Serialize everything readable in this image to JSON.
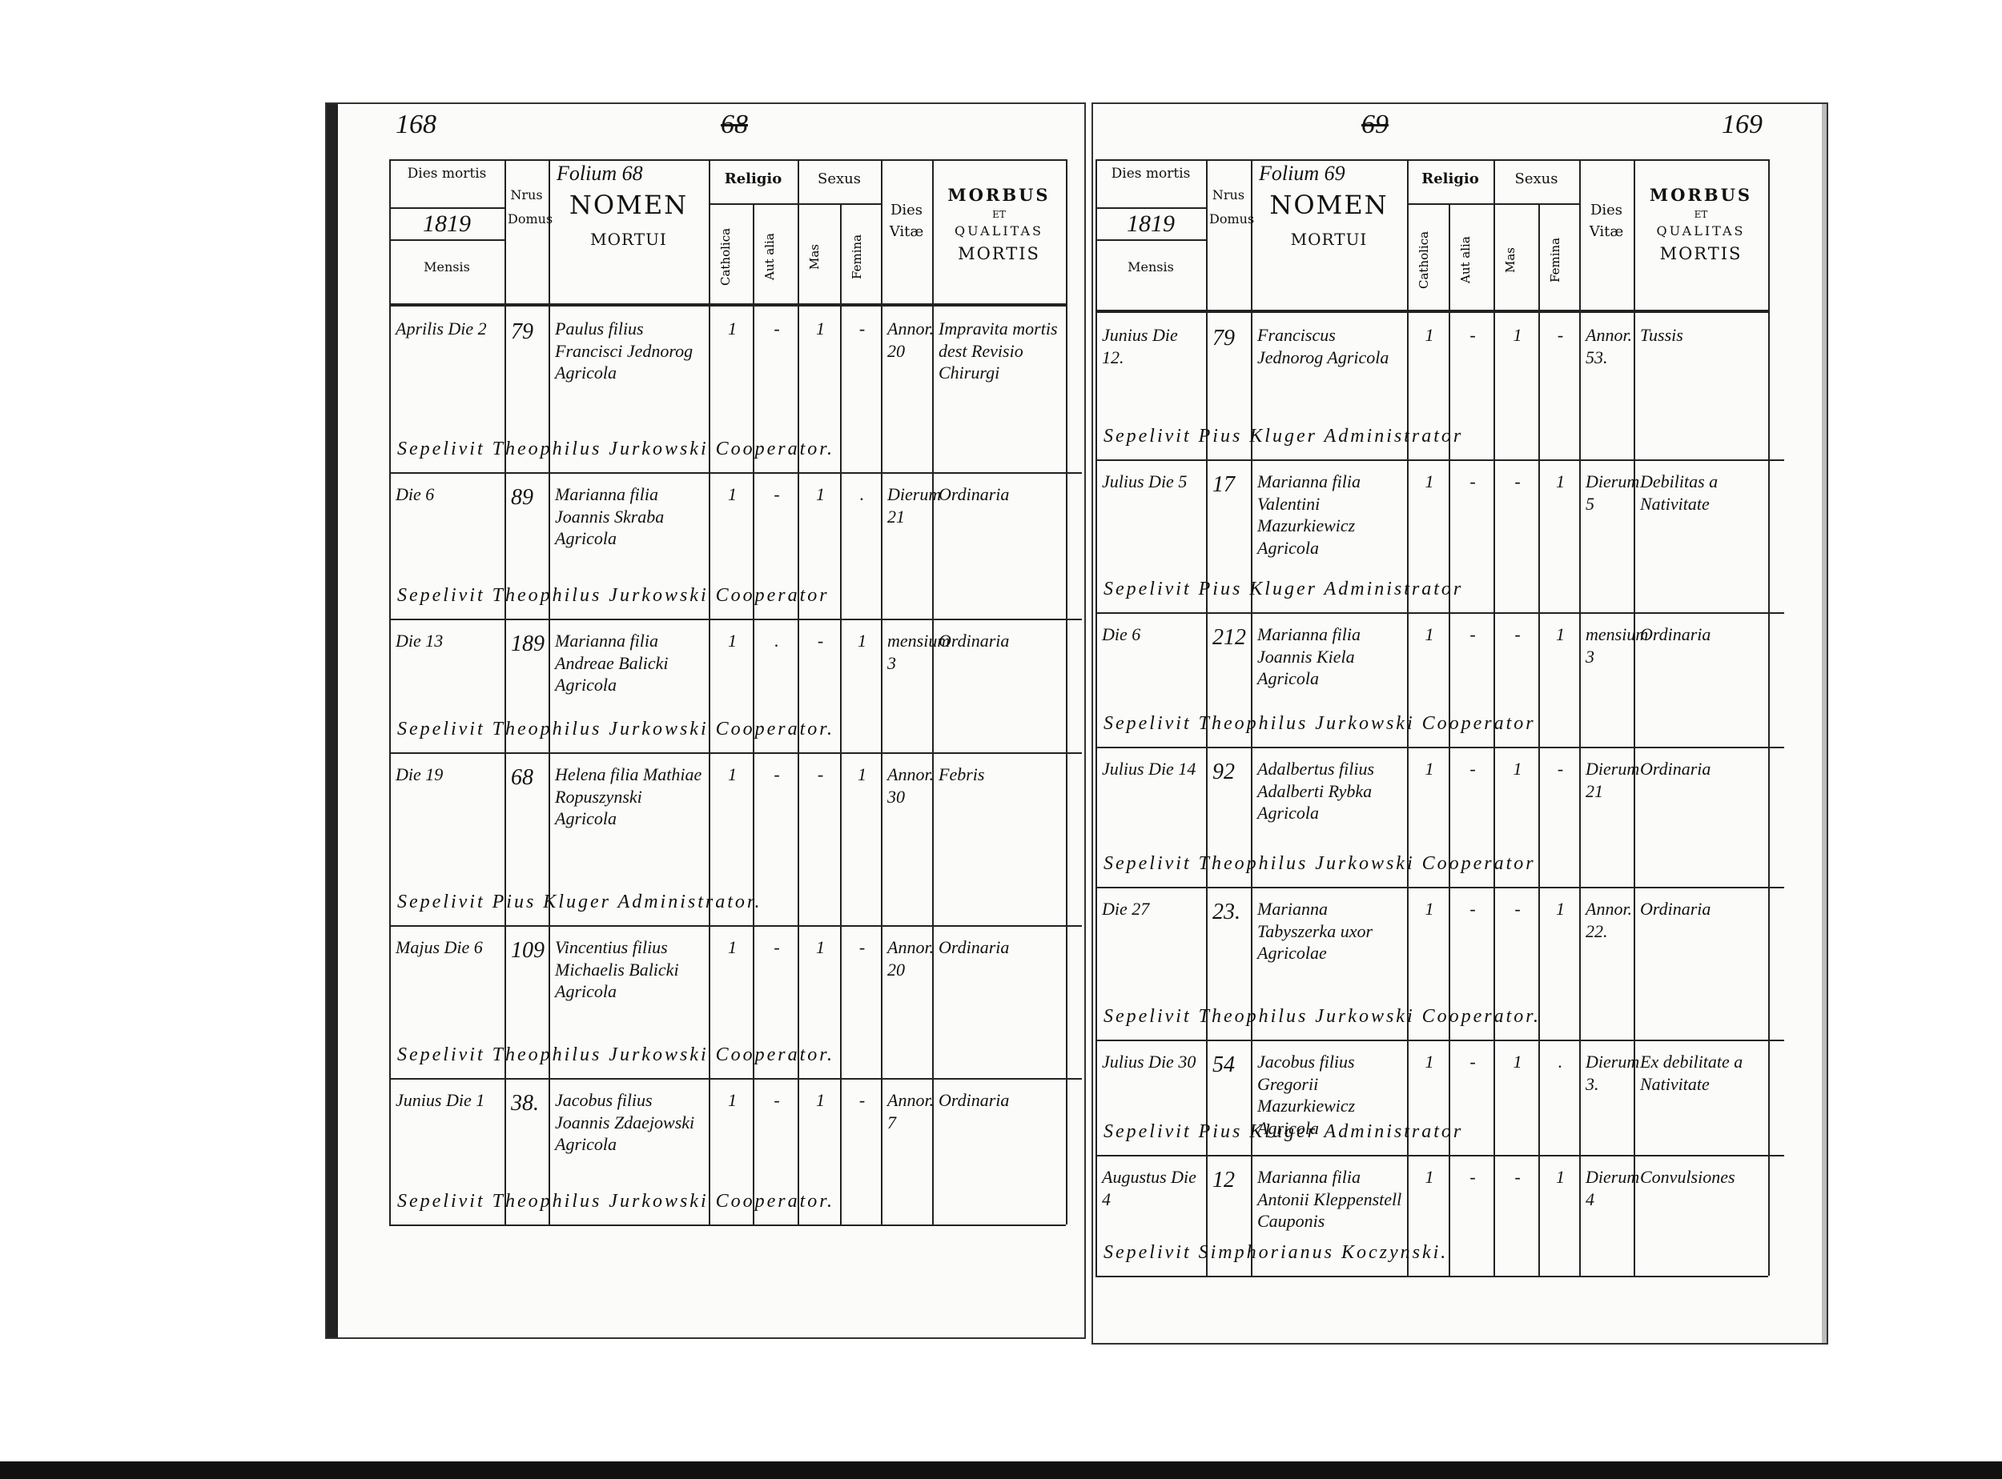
{
  "header": {
    "dies_mortis": "Dies mortis",
    "mensis": "Mensis",
    "nrus_domus": "Nrus Domus",
    "nomen": "NOMEN",
    "mortui": "MORTUI",
    "religio": "Religio",
    "catholica": "Catholica",
    "aut_alia": "Aut alia",
    "sexus": "Sexus",
    "mas": "Mas",
    "femina": "Femina",
    "dies_vitae": "Dies Vitæ",
    "morbus": "MORBUS",
    "et": "ET",
    "qualitas": "QUALITAS",
    "mortis": "MORTIS"
  },
  "pages": [
    {
      "page_number": "168",
      "old_number": "68",
      "year": "1819",
      "folium": "Folium 68",
      "entries": [
        {
          "date": "Aprilis Die 2",
          "house": "79",
          "name": "Paulus filius Francisci Jednorog Agricola",
          "catholica": "1",
          "aut_alia": "-",
          "mas": "1",
          "femina": "-",
          "age": "Annor. 20",
          "morbus": "Impravita mortis dest Revisio Chirurgi",
          "sepelivit": "Sepelivit Theophilus Jurkowski Cooperator."
        },
        {
          "date": "Die 6",
          "house": "89",
          "name": "Marianna filia Joannis Skraba Agricola",
          "catholica": "1",
          "aut_alia": "-",
          "mas": "1",
          "femina": ".",
          "age": "Dierum 21",
          "morbus": "Ordinaria",
          "sepelivit": "Sepelivit Theophilus Jurkowski Cooperator"
        },
        {
          "date": "Die 13",
          "house": "189",
          "name": "Marianna filia Andreae Balicki Agricola",
          "catholica": "1",
          "aut_alia": ".",
          "mas": "-",
          "femina": "1",
          "age": "mensium 3",
          "morbus": "Ordinaria",
          "sepelivit": "Sepelivit Theophilus Jurkowski Cooperator."
        },
        {
          "date": "Die 19",
          "house": "68",
          "name": "Helena filia Mathiae Ropuszynski Agricola",
          "catholica": "1",
          "aut_alia": "-",
          "mas": "-",
          "femina": "1",
          "age": "Annor. 30",
          "morbus": "Febris",
          "sepelivit": "Sepelivit Pius Kluger Administrator."
        },
        {
          "date": "Majus Die 6",
          "house": "109",
          "name": "Vincentius filius Michaelis Balicki Agricola",
          "catholica": "1",
          "aut_alia": "-",
          "mas": "1",
          "femina": "-",
          "age": "Annor. 20",
          "morbus": "Ordinaria",
          "sepelivit": "Sepelivit Theophilus Jurkowski Cooperator."
        },
        {
          "date": "Junius Die 1",
          "house": "38.",
          "name": "Jacobus filius Joannis Zdaejowski Agricola",
          "catholica": "1",
          "aut_alia": "-",
          "mas": "1",
          "femina": "-",
          "age": "Annor. 7",
          "morbus": "Ordinaria",
          "sepelivit": "Sepelivit Theophilus Jurkowski Cooperator."
        }
      ]
    },
    {
      "page_number": "169",
      "old_number": "69",
      "year": "1819",
      "folium": "Folium 69",
      "entries": [
        {
          "date": "Junius Die 12.",
          "house": "79",
          "name": "Franciscus Jednorog Agricola",
          "catholica": "1",
          "aut_alia": "-",
          "mas": "1",
          "femina": "-",
          "age": "Annor. 53.",
          "morbus": "Tussis",
          "sepelivit": "Sepelivit Pius Kluger Administrator"
        },
        {
          "date": "Julius Die 5",
          "house": "17",
          "name": "Marianna filia Valentini Mazurkiewicz Agricola",
          "catholica": "1",
          "aut_alia": "-",
          "mas": "-",
          "femina": "1",
          "age": "Dierum 5",
          "morbus": "Debilitas a Nativitate",
          "sepelivit": "Sepelivit Pius Kluger Administrator"
        },
        {
          "date": "Die 6",
          "house": "212",
          "name": "Marianna filia Joannis Kiela Agricola",
          "catholica": "1",
          "aut_alia": "-",
          "mas": "-",
          "femina": "1",
          "age": "mensium 3",
          "morbus": "Ordinaria",
          "sepelivit": "Sepelivit Theophilus Jurkowski Cooperator"
        },
        {
          "date": "Julius Die 14",
          "house": "92",
          "name": "Adalbertus filius Adalberti Rybka Agricola",
          "catholica": "1",
          "aut_alia": "-",
          "mas": "1",
          "femina": "-",
          "age": "Dierum 21",
          "morbus": "Ordinaria",
          "sepelivit": "Sepelivit Theophilus Jurkowski Cooperator"
        },
        {
          "date": "Die 27",
          "house": "23.",
          "name": "Marianna Tabyszerka uxor Agricolae",
          "catholica": "1",
          "aut_alia": "-",
          "mas": "-",
          "femina": "1",
          "age": "Annor. 22.",
          "morbus": "Ordinaria",
          "sepelivit": "Sepelivit Theophilus Jurkowski Cooperator."
        },
        {
          "date": "Julius Die 30",
          "house": "54",
          "name": "Jacobus filius Gregorii Mazurkiewicz Agricola",
          "catholica": "1",
          "aut_alia": "-",
          "mas": "1",
          "femina": ".",
          "age": "Dierum 3.",
          "morbus": "Ex debilitate a Nativitate",
          "sepelivit": "Sepelivit Pius Kluger Administrator"
        },
        {
          "date": "Augustus Die 4",
          "house": "12",
          "name": "Marianna filia Antonii Kleppenstell Cauponis",
          "catholica": "1",
          "aut_alia": "-",
          "mas": "-",
          "femina": "1",
          "age": "Dierum 4",
          "morbus": "Convulsiones",
          "sepelivit": "Sepelivit Simphorianus Koczynski."
        }
      ]
    }
  ]
}
